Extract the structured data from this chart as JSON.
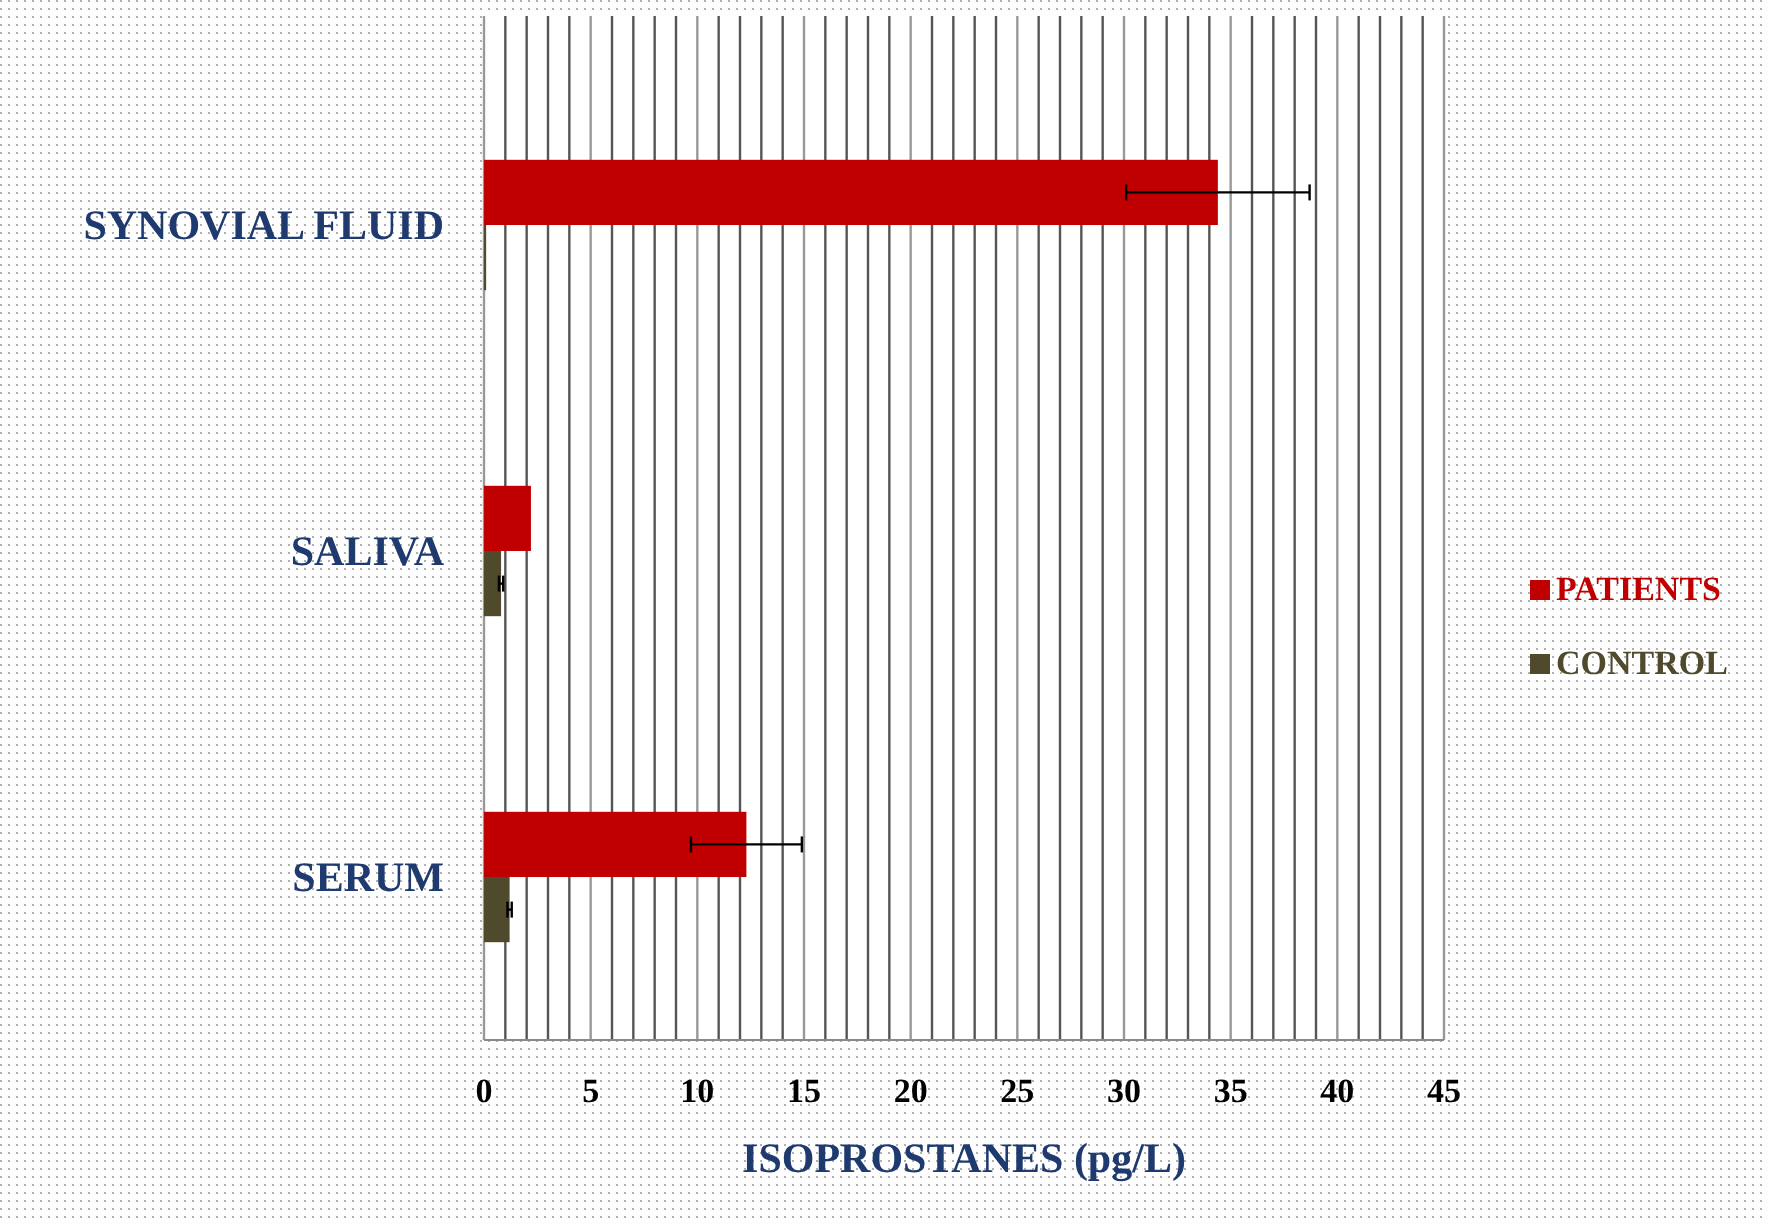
{
  "chart_data": {
    "type": "bar",
    "orientation": "horizontal",
    "xlabel": "ISOPROSTANES (pg/L)",
    "categories": [
      "SYNOVIAL FLUID",
      "SALIVA",
      "SERUM"
    ],
    "series": [
      {
        "name": "PATIENTS",
        "color": "#c00000",
        "values": [
          34.4,
          2.2,
          12.3
        ],
        "errors": [
          4.3,
          null,
          2.6
        ]
      },
      {
        "name": "CONTROL",
        "color": "#4f4a2c",
        "values": [
          0.1,
          0.8,
          1.2
        ],
        "errors": [
          null,
          0.1,
          0.1
        ]
      }
    ],
    "xlim": [
      0,
      45
    ],
    "xticks": [
      0,
      {
        "value": 1,
        "label": null
      },
      {
        "value": 2,
        "label": null
      },
      {
        "value": 3,
        "label": null
      },
      {
        "value": 4,
        "label": null
      },
      5,
      {
        "value": 6,
        "label": null
      },
      {
        "value": 7,
        "label": null
      },
      {
        "value": 8,
        "label": null
      },
      {
        "value": 9,
        "label": null
      },
      10,
      {
        "value": 11,
        "label": null
      },
      {
        "value": 12,
        "label": null
      },
      {
        "value": 13,
        "label": null
      },
      {
        "value": 14,
        "label": null
      },
      15,
      {
        "value": 16,
        "label": null
      },
      {
        "value": 17,
        "label": null
      },
      {
        "value": 18,
        "label": null
      },
      {
        "value": 19,
        "label": null
      },
      20,
      {
        "value": 21,
        "label": null
      },
      {
        "value": 22,
        "label": null
      },
      {
        "value": 23,
        "label": null
      },
      {
        "value": 24,
        "label": null
      },
      25,
      {
        "value": 26,
        "label": null
      },
      {
        "value": 27,
        "label": null
      },
      {
        "value": 28,
        "label": null
      },
      {
        "value": 29,
        "label": null
      },
      30,
      {
        "value": 31,
        "label": null
      },
      {
        "value": 32,
        "label": null
      },
      {
        "value": 33,
        "label": null
      },
      {
        "value": 34,
        "label": null
      },
      35,
      {
        "value": 36,
        "label": null
      },
      {
        "value": 37,
        "label": null
      },
      {
        "value": 38,
        "label": null
      },
      {
        "value": 39,
        "label": null
      },
      40,
      {
        "value": 41,
        "label": null
      },
      {
        "value": 42,
        "label": null
      },
      {
        "value": 43,
        "label": null
      },
      {
        "value": 44,
        "label": null
      },
      45
    ],
    "grid": "x",
    "legend": "right"
  }
}
